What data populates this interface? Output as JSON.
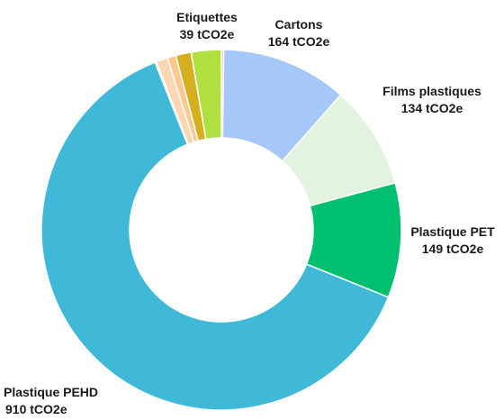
{
  "chart_data": {
    "type": "pie",
    "style": "donut",
    "start": "top, clockwise",
    "slices": [
      {
        "name": "",
        "value": 3,
        "color": "#f4b6a8",
        "label": ""
      },
      {
        "name": "Cartons",
        "value": 164,
        "color": "#a6c8f8",
        "label": "164 tCO2e"
      },
      {
        "name": "Films plastiques",
        "value": 134,
        "color": "#e2f4e0",
        "label": "134 tCO2e"
      },
      {
        "name": "Plastique PET",
        "value": 149,
        "color": "#00c070",
        "label": "149 tCO2e"
      },
      {
        "name": "Plastique PEHD",
        "value": 910,
        "color": "#40b8d8",
        "label": "910 tCO2e"
      },
      {
        "name": "",
        "value": 2,
        "color": "#c9c0b0",
        "label": ""
      },
      {
        "name": "",
        "value": 15,
        "color": "#fcd6b0",
        "label": ""
      },
      {
        "name": "",
        "value": 11,
        "color": "#fcc890",
        "label": ""
      },
      {
        "name": "",
        "value": 20,
        "color": "#d4b020",
        "label": ""
      },
      {
        "name": "Etiquettes",
        "value": 39,
        "color": "#b0e040",
        "label": "39 tCO2e"
      }
    ]
  }
}
